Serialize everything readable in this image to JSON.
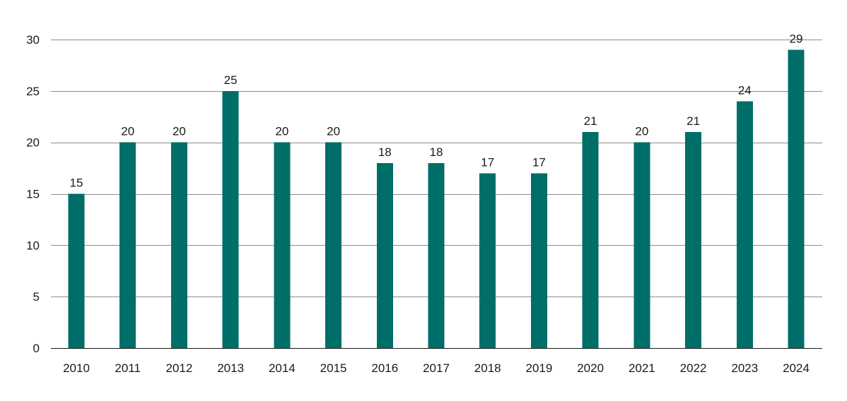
{
  "chart_data": {
    "type": "bar",
    "title": "",
    "xlabel": "",
    "ylabel": "",
    "categories": [
      "2010",
      "2011",
      "2012",
      "2013",
      "2014",
      "2015",
      "2016",
      "2017",
      "2018",
      "2019",
      "2020",
      "2021",
      "2022",
      "2023",
      "2024"
    ],
    "values": [
      15,
      20,
      20,
      25,
      20,
      20,
      18,
      18,
      17,
      17,
      21,
      20,
      21,
      24,
      29
    ],
    "ylim": [
      0,
      30
    ],
    "yticks": [
      "0",
      "5",
      "10",
      "15",
      "20",
      "25",
      "30"
    ],
    "data_labels": [
      "15",
      "20",
      "20",
      "25",
      "20",
      "20",
      "18",
      "18",
      "17",
      "17",
      "21",
      "20",
      "21",
      "24",
      "29"
    ],
    "grid": true,
    "legend": "none",
    "colors": {
      "bar": "#006e68",
      "grid": "#8c8c8c",
      "text": "#1a1a1a"
    }
  }
}
